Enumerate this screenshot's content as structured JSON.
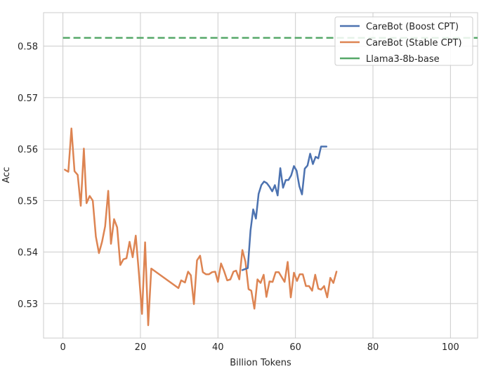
{
  "chart_data": {
    "type": "line",
    "title": "",
    "xlabel": "Billion Tokens",
    "ylabel": "Acc",
    "xlim": [
      -5,
      107
    ],
    "ylim": [
      0.5233,
      0.5865
    ],
    "xticks": [
      0,
      20,
      40,
      60,
      80,
      100
    ],
    "yticks": [
      0.53,
      0.54,
      0.55,
      0.56,
      0.57,
      0.58
    ],
    "ytick_labels": [
      "0.53",
      "0.54",
      "0.55",
      "0.56",
      "0.57",
      "0.58"
    ],
    "grid": true,
    "legend_position": "top-right",
    "series": [
      {
        "name": "CareBot (Boost CPT)",
        "color": "#4c72b0",
        "style": "solid",
        "x": [
          46.3,
          47.0,
          47.7,
          48.4,
          49.1,
          49.8,
          50.5,
          51.2,
          51.9,
          52.6,
          53.3,
          54.0,
          54.7,
          55.4,
          56.1,
          56.8,
          57.5,
          58.2,
          58.9,
          59.6,
          60.3,
          61.0,
          61.7,
          62.4,
          63.1,
          63.8,
          64.5,
          65.2,
          65.9,
          66.6,
          67.3,
          68.0
        ],
        "y": [
          0.5365,
          0.5367,
          0.5369,
          0.5442,
          0.5483,
          0.5465,
          0.5513,
          0.553,
          0.5537,
          0.5534,
          0.5527,
          0.5518,
          0.553,
          0.551,
          0.5563,
          0.5525,
          0.554,
          0.554,
          0.5549,
          0.5567,
          0.5558,
          0.5528,
          0.5512,
          0.5562,
          0.5568,
          0.5591,
          0.5571,
          0.5585,
          0.5582,
          0.5605,
          0.5605,
          0.5605
        ]
      },
      {
        "name": "CareBot (Stable CPT)",
        "color": "#dd8452",
        "style": "solid",
        "x": [
          0.5,
          1.4,
          2.2,
          3.0,
          3.8,
          4.6,
          5.4,
          6.1,
          6.9,
          7.7,
          8.5,
          9.3,
          10.1,
          10.9,
          11.7,
          12.4,
          13.2,
          14.0,
          14.8,
          15.6,
          16.4,
          17.2,
          18.0,
          18.8,
          19.6,
          20.4,
          21.2,
          22.0,
          22.8,
          29.8,
          30.5,
          31.5,
          32.3,
          33.0,
          33.8,
          34.6,
          35.4,
          36.1,
          36.9,
          37.7,
          38.5,
          39.3,
          40.0,
          40.8,
          41.6,
          42.4,
          43.2,
          44.0,
          44.7,
          45.5,
          46.3,
          47.1,
          47.9,
          48.6,
          49.4,
          50.2,
          51.0,
          51.8,
          52.5,
          53.3,
          54.1,
          54.9,
          55.7,
          56.4,
          57.2,
          58.0,
          58.8,
          59.6,
          60.4,
          61.1,
          61.9,
          62.7,
          63.5,
          64.3,
          65.1,
          65.9,
          66.6,
          67.4,
          68.2,
          69.0,
          69.8,
          70.6
        ],
        "y": [
          0.556,
          0.5556,
          0.564,
          0.5557,
          0.555,
          0.549,
          0.5601,
          0.5495,
          0.5509,
          0.55,
          0.543,
          0.5398,
          0.542,
          0.545,
          0.5519,
          0.5416,
          0.5464,
          0.5448,
          0.5375,
          0.5386,
          0.5388,
          0.542,
          0.539,
          0.5432,
          0.536,
          0.528,
          0.5419,
          0.5258,
          0.5368,
          0.533,
          0.5345,
          0.5341,
          0.5362,
          0.5355,
          0.5299,
          0.5384,
          0.5393,
          0.5361,
          0.5357,
          0.5357,
          0.5361,
          0.5362,
          0.5342,
          0.5378,
          0.5363,
          0.5345,
          0.5347,
          0.5362,
          0.5364,
          0.5347,
          0.5404,
          0.5381,
          0.5328,
          0.5325,
          0.529,
          0.5347,
          0.534,
          0.5356,
          0.5313,
          0.5343,
          0.5342,
          0.5361,
          0.5361,
          0.5352,
          0.5342,
          0.5381,
          0.5312,
          0.536,
          0.5344,
          0.5357,
          0.5357,
          0.5334,
          0.5334,
          0.5325,
          0.5356,
          0.5329,
          0.5327,
          0.5334,
          0.5312,
          0.535,
          0.534,
          0.5362
        ]
      },
      {
        "name": "Llama3-8b-base",
        "color": "#55a868",
        "style": "dashed",
        "x": [
          0,
          107
        ],
        "y": [
          0.5816,
          0.5816
        ]
      }
    ]
  }
}
